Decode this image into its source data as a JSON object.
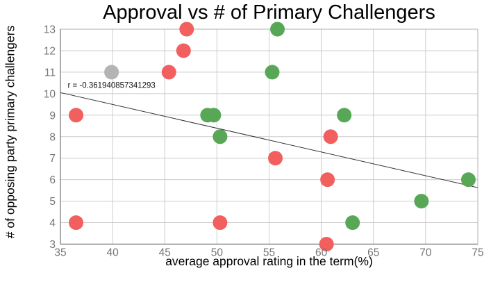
{
  "chart_data": {
    "type": "scatter",
    "title": "Approval vs # of Primary Challengers",
    "xlabel": "average approval rating in the term(%)",
    "ylabel": "# of opposing party primary challengers",
    "xlim": [
      35,
      75
    ],
    "ylim": [
      3,
      13
    ],
    "x_ticks": [
      35,
      40,
      45,
      50,
      55,
      60,
      65,
      70,
      75
    ],
    "y_ticks": [
      3,
      4,
      5,
      6,
      7,
      8,
      9,
      10,
      11,
      12,
      13
    ],
    "grid": true,
    "legend": false,
    "marker_radius": 10.5,
    "annotation": {
      "text": "r = -0.361940857341293",
      "x": 35.7,
      "y": 10.4
    },
    "trendline": {
      "x1": 35,
      "y1": 10.05,
      "x2": 75,
      "y2": 5.63,
      "color": "#333333"
    },
    "series": [
      {
        "name": "red-points",
        "color": "#f25f5f",
        "points": [
          [
            36.5,
            9
          ],
          [
            36.5,
            4
          ],
          [
            45.4,
            11
          ],
          [
            46.8,
            12
          ],
          [
            47.1,
            13
          ],
          [
            50.3,
            4
          ],
          [
            55.6,
            7
          ],
          [
            60.9,
            8
          ],
          [
            60.6,
            6
          ],
          [
            60.5,
            3
          ]
        ]
      },
      {
        "name": "green-points",
        "color": "#57a757",
        "points": [
          [
            49.1,
            9
          ],
          [
            49.7,
            9
          ],
          [
            50.3,
            8
          ],
          [
            55.3,
            11
          ],
          [
            55.8,
            13
          ],
          [
            62.2,
            9
          ],
          [
            63.0,
            4
          ],
          [
            69.6,
            5
          ],
          [
            74.1,
            6
          ]
        ]
      },
      {
        "name": "gray-points",
        "color": "#b4b4b4",
        "points": [
          [
            39.9,
            11
          ]
        ]
      }
    ],
    "colors": {
      "grid": "#cccccc",
      "axis_main": "#888888",
      "axis_border": "#b0b0b0",
      "tick_text": "#757575",
      "annotation_text": "#111111"
    }
  }
}
